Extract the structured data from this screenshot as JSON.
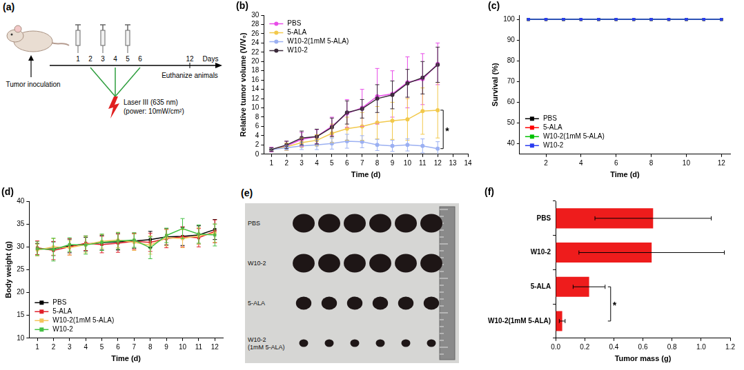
{
  "diagram": {
    "label": "(a)",
    "start": "Tumor inoculation",
    "days": [
      1,
      2,
      3,
      4,
      5,
      6
    ],
    "end_day": 12,
    "axis_label": "Days",
    "injection_days": [
      1,
      3,
      5
    ],
    "laser_days": [
      2,
      4,
      6
    ],
    "laser": "Laser III (635 nm)",
    "laser_power": "(power: 10mW/cm²)",
    "end": "Euthanize animals"
  },
  "chart_data": [
    {
      "label": "(b)",
      "type": "line",
      "x_label": "Time (d)",
      "y_label": "Relative tumor volume (V/V₀)",
      "x": [
        1,
        2,
        3,
        4,
        5,
        6,
        7,
        8,
        9,
        10,
        11,
        12
      ],
      "xlim": [
        0.5,
        14
      ],
      "xticks": [
        1,
        2,
        3,
        4,
        5,
        6,
        7,
        8,
        9,
        10,
        11,
        12,
        13,
        14
      ],
      "ylim": [
        0,
        30
      ],
      "yticks": [
        0,
        2,
        4,
        6,
        8,
        10,
        12,
        14,
        16,
        18,
        20,
        22,
        24,
        26,
        28,
        30
      ],
      "grid": false,
      "legend": "upper left",
      "marker": "circle",
      "series": [
        {
          "name": "PBS",
          "color": "#e84ce8",
          "values": [
            1,
            1.8,
            3.2,
            3.8,
            6,
            8.8,
            10,
            12.5,
            13,
            15.5,
            16.2,
            19.5
          ],
          "errors": [
            0.5,
            1,
            1.5,
            1.5,
            2,
            3,
            4,
            6,
            5,
            5.5,
            5.5,
            4.5
          ]
        },
        {
          "name": "5-ALA",
          "color": "#f2c94c",
          "values": [
            1,
            1.6,
            2.5,
            3,
            4.5,
            5.5,
            6,
            6.8,
            7.2,
            7.5,
            9.3,
            9.5
          ],
          "errors": [
            0.3,
            0.8,
            1,
            1.2,
            2,
            2.5,
            3,
            3.5,
            4,
            4.5,
            5,
            6
          ]
        },
        {
          "name": "W10-2(1mM 5-ALA)",
          "color": "#9bb0f2",
          "values": [
            1,
            1.4,
            1.8,
            2,
            2.3,
            2.8,
            2.7,
            2,
            1.8,
            2,
            1.8,
            1.2
          ],
          "errors": [
            0.3,
            0.5,
            0.8,
            1,
            1.2,
            1.5,
            1.3,
            1.2,
            1.2,
            1.3,
            1.5,
            1.5
          ]
        },
        {
          "name": "W10-2",
          "color": "#3a2a3a",
          "values": [
            1,
            2,
            3.5,
            3.8,
            5.8,
            9,
            9.8,
            12,
            12.8,
            15.3,
            16.5,
            19.3
          ],
          "errors": [
            0.4,
            0.8,
            1.5,
            1.6,
            2,
            2.5,
            2,
            3,
            3,
            3,
            3.5,
            3.8
          ]
        }
      ],
      "annotations": [
        {
          "text": "*",
          "between": [
            "5-ALA",
            "W10-2(1mM 5-ALA)"
          ]
        }
      ]
    },
    {
      "label": "(c)",
      "type": "line",
      "x_label": "Time (d)",
      "y_label": "Survival (%)",
      "x": [
        1,
        2,
        3,
        4,
        5,
        6,
        7,
        8,
        9,
        10,
        11,
        12
      ],
      "xlim": [
        0.5,
        12.5
      ],
      "xticks": [
        2,
        4,
        6,
        8,
        10,
        12
      ],
      "ylim": [
        35,
        102
      ],
      "yticks": [
        40,
        50,
        60,
        70,
        80,
        90,
        100
      ],
      "grid": false,
      "legend": "lower left",
      "marker": "square",
      "series": [
        {
          "name": "PBS",
          "color": "#000000",
          "values": [
            100,
            100,
            100,
            100,
            100,
            100,
            100,
            100,
            100,
            100,
            100,
            100
          ]
        },
        {
          "name": "5-ALA",
          "color": "#ff0000",
          "values": [
            100,
            100,
            100,
            100,
            100,
            100,
            100,
            100,
            100,
            100,
            100,
            100
          ]
        },
        {
          "name": "W10-2(1mM 5-ALA)",
          "color": "#00c000",
          "values": [
            100,
            100,
            100,
            100,
            100,
            100,
            100,
            100,
            100,
            100,
            100,
            100
          ]
        },
        {
          "name": "W10-2",
          "color": "#2a3cf0",
          "values": [
            100,
            100,
            100,
            100,
            100,
            100,
            100,
            100,
            100,
            100,
            100,
            100
          ]
        }
      ]
    },
    {
      "label": "(d)",
      "type": "line",
      "x_label": "Time (d)",
      "y_label": "Body weight (g)",
      "x": [
        1,
        2,
        3,
        4,
        5,
        6,
        7,
        8,
        9,
        10,
        11,
        12
      ],
      "xlim": [
        0.5,
        12.5
      ],
      "xticks": [
        1,
        2,
        3,
        4,
        5,
        6,
        7,
        8,
        9,
        10,
        11,
        12
      ],
      "ylim": [
        10,
        40
      ],
      "yticks": [
        10,
        15,
        20,
        25,
        30,
        35,
        40
      ],
      "grid": false,
      "legend": "lower left",
      "marker": "square",
      "series": [
        {
          "name": "PBS",
          "color": "#000000",
          "values": [
            29.5,
            29.6,
            30.2,
            30.6,
            30.9,
            31.1,
            31.3,
            31.6,
            32.2,
            32.3,
            32.6,
            33.8
          ],
          "errors": [
            1.2,
            1.5,
            1.5,
            1.5,
            1.6,
            1.8,
            1.6,
            1.8,
            1.8,
            2,
            2,
            2.2
          ]
        },
        {
          "name": "5-ALA",
          "color": "#e0202a",
          "values": [
            29.8,
            29.2,
            30,
            30.8,
            30.5,
            30.8,
            31.2,
            31,
            31.8,
            32.2,
            32,
            33.4
          ],
          "errors": [
            1.5,
            2,
            1.8,
            1.6,
            1.8,
            2,
            1.8,
            2,
            2,
            2.2,
            2,
            2.5
          ]
        },
        {
          "name": "W10-2(1mM 5-ALA)",
          "color": "#f4c45a",
          "values": [
            29.3,
            30,
            29.8,
            30.5,
            31.2,
            31.5,
            31,
            30.4,
            32,
            31.8,
            32.4,
            33
          ],
          "errors": [
            1.3,
            1.8,
            1.6,
            1.8,
            1.5,
            1.7,
            1.8,
            2,
            1.8,
            2,
            1.8,
            2
          ]
        },
        {
          "name": "W10-2",
          "color": "#44c044",
          "values": [
            29.6,
            29.4,
            30.5,
            30.4,
            31,
            31.3,
            31.5,
            29.8,
            32.5,
            34,
            32.8,
            32.6
          ],
          "errors": [
            1.5,
            2.5,
            1.5,
            2,
            1.8,
            1.8,
            1.6,
            2.4,
            1.6,
            2.2,
            2,
            2.4
          ]
        }
      ]
    },
    {
      "label": "(f)",
      "type": "bar",
      "orientation": "horizontal",
      "x_label": "Tumor mass (g)",
      "categories": [
        "PBS",
        "W10-2",
        "5-ALA",
        "W10-2(1mM 5-ALA)"
      ],
      "values": [
        0.67,
        0.66,
        0.23,
        0.045
      ],
      "errors": [
        0.4,
        0.5,
        0.11,
        0.02
      ],
      "color": "#ee1c1c",
      "xlim": [
        0,
        1.2
      ],
      "xticks": [
        {
          "value": 0,
          "label": "0.0"
        },
        0.2,
        0.4,
        0.6,
        0.8,
        {
          "value": 1,
          "label": "1.0"
        },
        1.2
      ],
      "grid": false,
      "annotations": [
        {
          "text": "*",
          "between": [
            "5-ALA",
            "W10-2(1mM 5-ALA)"
          ]
        }
      ]
    }
  ],
  "photo": {
    "label": "(e)",
    "rows": [
      {
        "label": "PBS",
        "count": 6
      },
      {
        "label": "W10-2",
        "count": 6
      },
      {
        "label": "5-ALA",
        "count": 6
      },
      {
        "label": "W10-2 (1mM 5-ALA)",
        "count": 6
      }
    ]
  }
}
